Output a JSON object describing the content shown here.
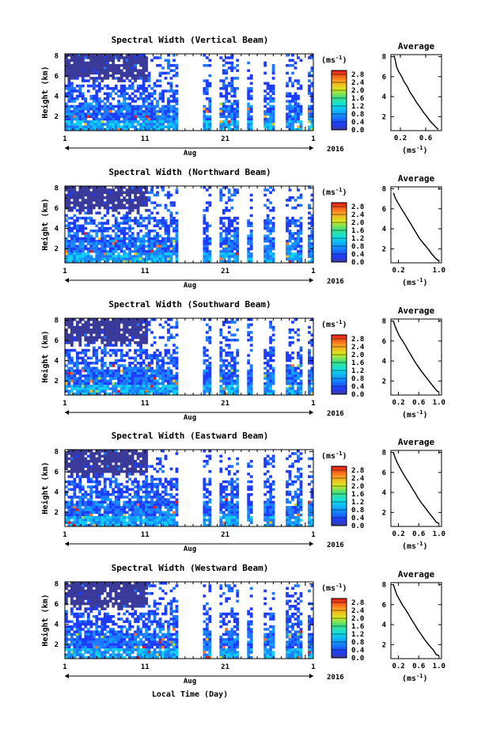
{
  "figure": {
    "common_xlabel": "Local Time (Day)",
    "colorbar_unit_base": "(ms",
    "colorbar_unit_exp": "-1",
    "colorbar_unit_close": ")",
    "avg_title": "Average",
    "avg_xlabel_base": "(ms",
    "avg_xlabel_exp": "-1",
    "avg_xlabel_close": ")",
    "month_label": "Aug",
    "year_label": "2016",
    "ylabel": "Height (km)"
  },
  "chart_data": [
    {
      "type": "heatmap",
      "title": "Spectral Width (Vertical Beam)",
      "xlabel": "",
      "ylabel": "Height (km)",
      "x_ticks": [
        "1",
        "11",
        "21",
        "1"
      ],
      "y_ticks": [
        "2",
        "4",
        "6",
        "8"
      ],
      "ylim": [
        0.6,
        8.2
      ],
      "colorbar_ticks": [
        "2.8",
        "2.4",
        "2.0",
        "1.6",
        "1.2",
        "0.8",
        "0.4",
        "0.0"
      ],
      "colorbar_range": [
        0.0,
        3.0
      ],
      "avg": {
        "title": "Average",
        "x_ticks": [
          "0.2",
          "0.6"
        ],
        "y_ticks": [
          "2",
          "4",
          "6",
          "8"
        ],
        "xlim": [
          0.05,
          0.85
        ],
        "ylim": [
          0.6,
          8.2
        ],
        "profile": [
          [
            0.1,
            8.1
          ],
          [
            0.12,
            7.6
          ],
          [
            0.14,
            7.0
          ],
          [
            0.17,
            6.5
          ],
          [
            0.22,
            6.0
          ],
          [
            0.26,
            5.5
          ],
          [
            0.31,
            5.0
          ],
          [
            0.35,
            4.5
          ],
          [
            0.4,
            4.0
          ],
          [
            0.45,
            3.5
          ],
          [
            0.5,
            3.0
          ],
          [
            0.56,
            2.5
          ],
          [
            0.62,
            2.0
          ],
          [
            0.68,
            1.5
          ],
          [
            0.75,
            1.0
          ],
          [
            0.8,
            0.7
          ]
        ]
      }
    },
    {
      "type": "heatmap",
      "title": "Spectral Width (Northward Beam)",
      "xlabel": "",
      "ylabel": "Height (km)",
      "x_ticks": [
        "1",
        "11",
        "21",
        "1"
      ],
      "y_ticks": [
        "2",
        "4",
        "6",
        "8"
      ],
      "ylim": [
        0.6,
        8.2
      ],
      "colorbar_ticks": [
        "2.8",
        "2.4",
        "2.0",
        "1.6",
        "1.2",
        "0.8",
        "0.4",
        "0.0"
      ],
      "colorbar_range": [
        0.0,
        3.0
      ],
      "avg": {
        "title": "Average",
        "x_ticks": [
          "0.2",
          "1.0"
        ],
        "y_ticks": [
          "2",
          "4",
          "6",
          "8"
        ],
        "xlim": [
          0.05,
          1.05
        ],
        "ylim": [
          0.6,
          8.2
        ],
        "profile": [
          [
            0.1,
            7.6
          ],
          [
            0.14,
            7.0
          ],
          [
            0.2,
            6.5
          ],
          [
            0.26,
            6.0
          ],
          [
            0.32,
            5.5
          ],
          [
            0.38,
            5.0
          ],
          [
            0.44,
            4.5
          ],
          [
            0.5,
            4.0
          ],
          [
            0.56,
            3.5
          ],
          [
            0.62,
            3.0
          ],
          [
            0.7,
            2.5
          ],
          [
            0.78,
            2.0
          ],
          [
            0.86,
            1.5
          ],
          [
            0.94,
            1.0
          ],
          [
            0.99,
            0.8
          ]
        ]
      }
    },
    {
      "type": "heatmap",
      "title": "Spectral Width (Southward Beam)",
      "xlabel": "",
      "ylabel": "Height (km)",
      "x_ticks": [
        "1",
        "11",
        "21",
        "1"
      ],
      "y_ticks": [
        "2",
        "4",
        "6",
        "8"
      ],
      "ylim": [
        0.6,
        8.2
      ],
      "colorbar_ticks": [
        "2.8",
        "2.4",
        "2.0",
        "1.6",
        "1.2",
        "0.8",
        "0.4",
        "0.0"
      ],
      "colorbar_range": [
        0.0,
        3.0
      ],
      "avg": {
        "title": "Average",
        "x_ticks": [
          "0.2",
          "0.6",
          "1.0"
        ],
        "y_ticks": [
          "2",
          "4",
          "6",
          "8"
        ],
        "xlim": [
          0.05,
          1.05
        ],
        "ylim": [
          0.6,
          8.2
        ],
        "profile": [
          [
            0.1,
            8.0
          ],
          [
            0.13,
            7.5
          ],
          [
            0.17,
            7.0
          ],
          [
            0.22,
            6.5
          ],
          [
            0.28,
            6.0
          ],
          [
            0.34,
            5.5
          ],
          [
            0.4,
            5.0
          ],
          [
            0.46,
            4.5
          ],
          [
            0.52,
            4.0
          ],
          [
            0.58,
            3.5
          ],
          [
            0.65,
            3.0
          ],
          [
            0.72,
            2.5
          ],
          [
            0.8,
            2.0
          ],
          [
            0.88,
            1.5
          ],
          [
            0.96,
            1.0
          ],
          [
            1.0,
            0.9
          ]
        ]
      }
    },
    {
      "type": "heatmap",
      "title": "Spectral Width (Eastward Beam)",
      "xlabel": "",
      "ylabel": "Height (km)",
      "x_ticks": [
        "1",
        "11",
        "21",
        "1"
      ],
      "y_ticks": [
        "2",
        "4",
        "6",
        "8"
      ],
      "ylim": [
        0.6,
        8.2
      ],
      "colorbar_ticks": [
        "2.8",
        "2.4",
        "2.0",
        "1.6",
        "1.2",
        "0.8",
        "0.4",
        "0.0"
      ],
      "colorbar_range": [
        0.0,
        3.0
      ],
      "avg": {
        "title": "Average",
        "x_ticks": [
          "0.2",
          "0.6",
          "1.0"
        ],
        "y_ticks": [
          "2",
          "4",
          "6",
          "8"
        ],
        "xlim": [
          0.05,
          1.05
        ],
        "ylim": [
          0.6,
          8.2
        ],
        "profile": [
          [
            0.1,
            8.0
          ],
          [
            0.13,
            7.5
          ],
          [
            0.17,
            7.0
          ],
          [
            0.22,
            6.5
          ],
          [
            0.28,
            6.0
          ],
          [
            0.34,
            5.5
          ],
          [
            0.4,
            5.0
          ],
          [
            0.46,
            4.5
          ],
          [
            0.52,
            4.0
          ],
          [
            0.58,
            3.5
          ],
          [
            0.65,
            3.0
          ],
          [
            0.72,
            2.5
          ],
          [
            0.8,
            2.0
          ],
          [
            0.88,
            1.5
          ],
          [
            0.95,
            1.0
          ],
          [
            1.0,
            0.9
          ]
        ]
      }
    },
    {
      "type": "heatmap",
      "title": "Spectral Width (Westward Beam)",
      "xlabel": "",
      "ylabel": "Height (km)",
      "x_ticks": [
        "1",
        "11",
        "21",
        "1"
      ],
      "y_ticks": [
        "2",
        "4",
        "6",
        "8"
      ],
      "ylim": [
        0.6,
        8.2
      ],
      "colorbar_ticks": [
        "2.8",
        "2.4",
        "2.0",
        "1.6",
        "1.2",
        "0.8",
        "0.4",
        "0.0"
      ],
      "colorbar_range": [
        0.0,
        3.0
      ],
      "avg": {
        "title": "Average",
        "x_ticks": [
          "0.2",
          "0.6",
          "1.0"
        ],
        "y_ticks": [
          "2",
          "4",
          "6",
          "8"
        ],
        "xlim": [
          0.05,
          1.05
        ],
        "ylim": [
          0.6,
          8.2
        ],
        "profile": [
          [
            0.1,
            8.0
          ],
          [
            0.13,
            7.5
          ],
          [
            0.17,
            7.0
          ],
          [
            0.22,
            6.5
          ],
          [
            0.28,
            6.0
          ],
          [
            0.34,
            5.5
          ],
          [
            0.4,
            5.0
          ],
          [
            0.46,
            4.5
          ],
          [
            0.52,
            4.0
          ],
          [
            0.58,
            3.5
          ],
          [
            0.65,
            3.0
          ],
          [
            0.72,
            2.5
          ],
          [
            0.8,
            2.0
          ],
          [
            0.88,
            1.5
          ],
          [
            0.95,
            1.0
          ],
          [
            1.0,
            0.9
          ]
        ]
      }
    }
  ]
}
